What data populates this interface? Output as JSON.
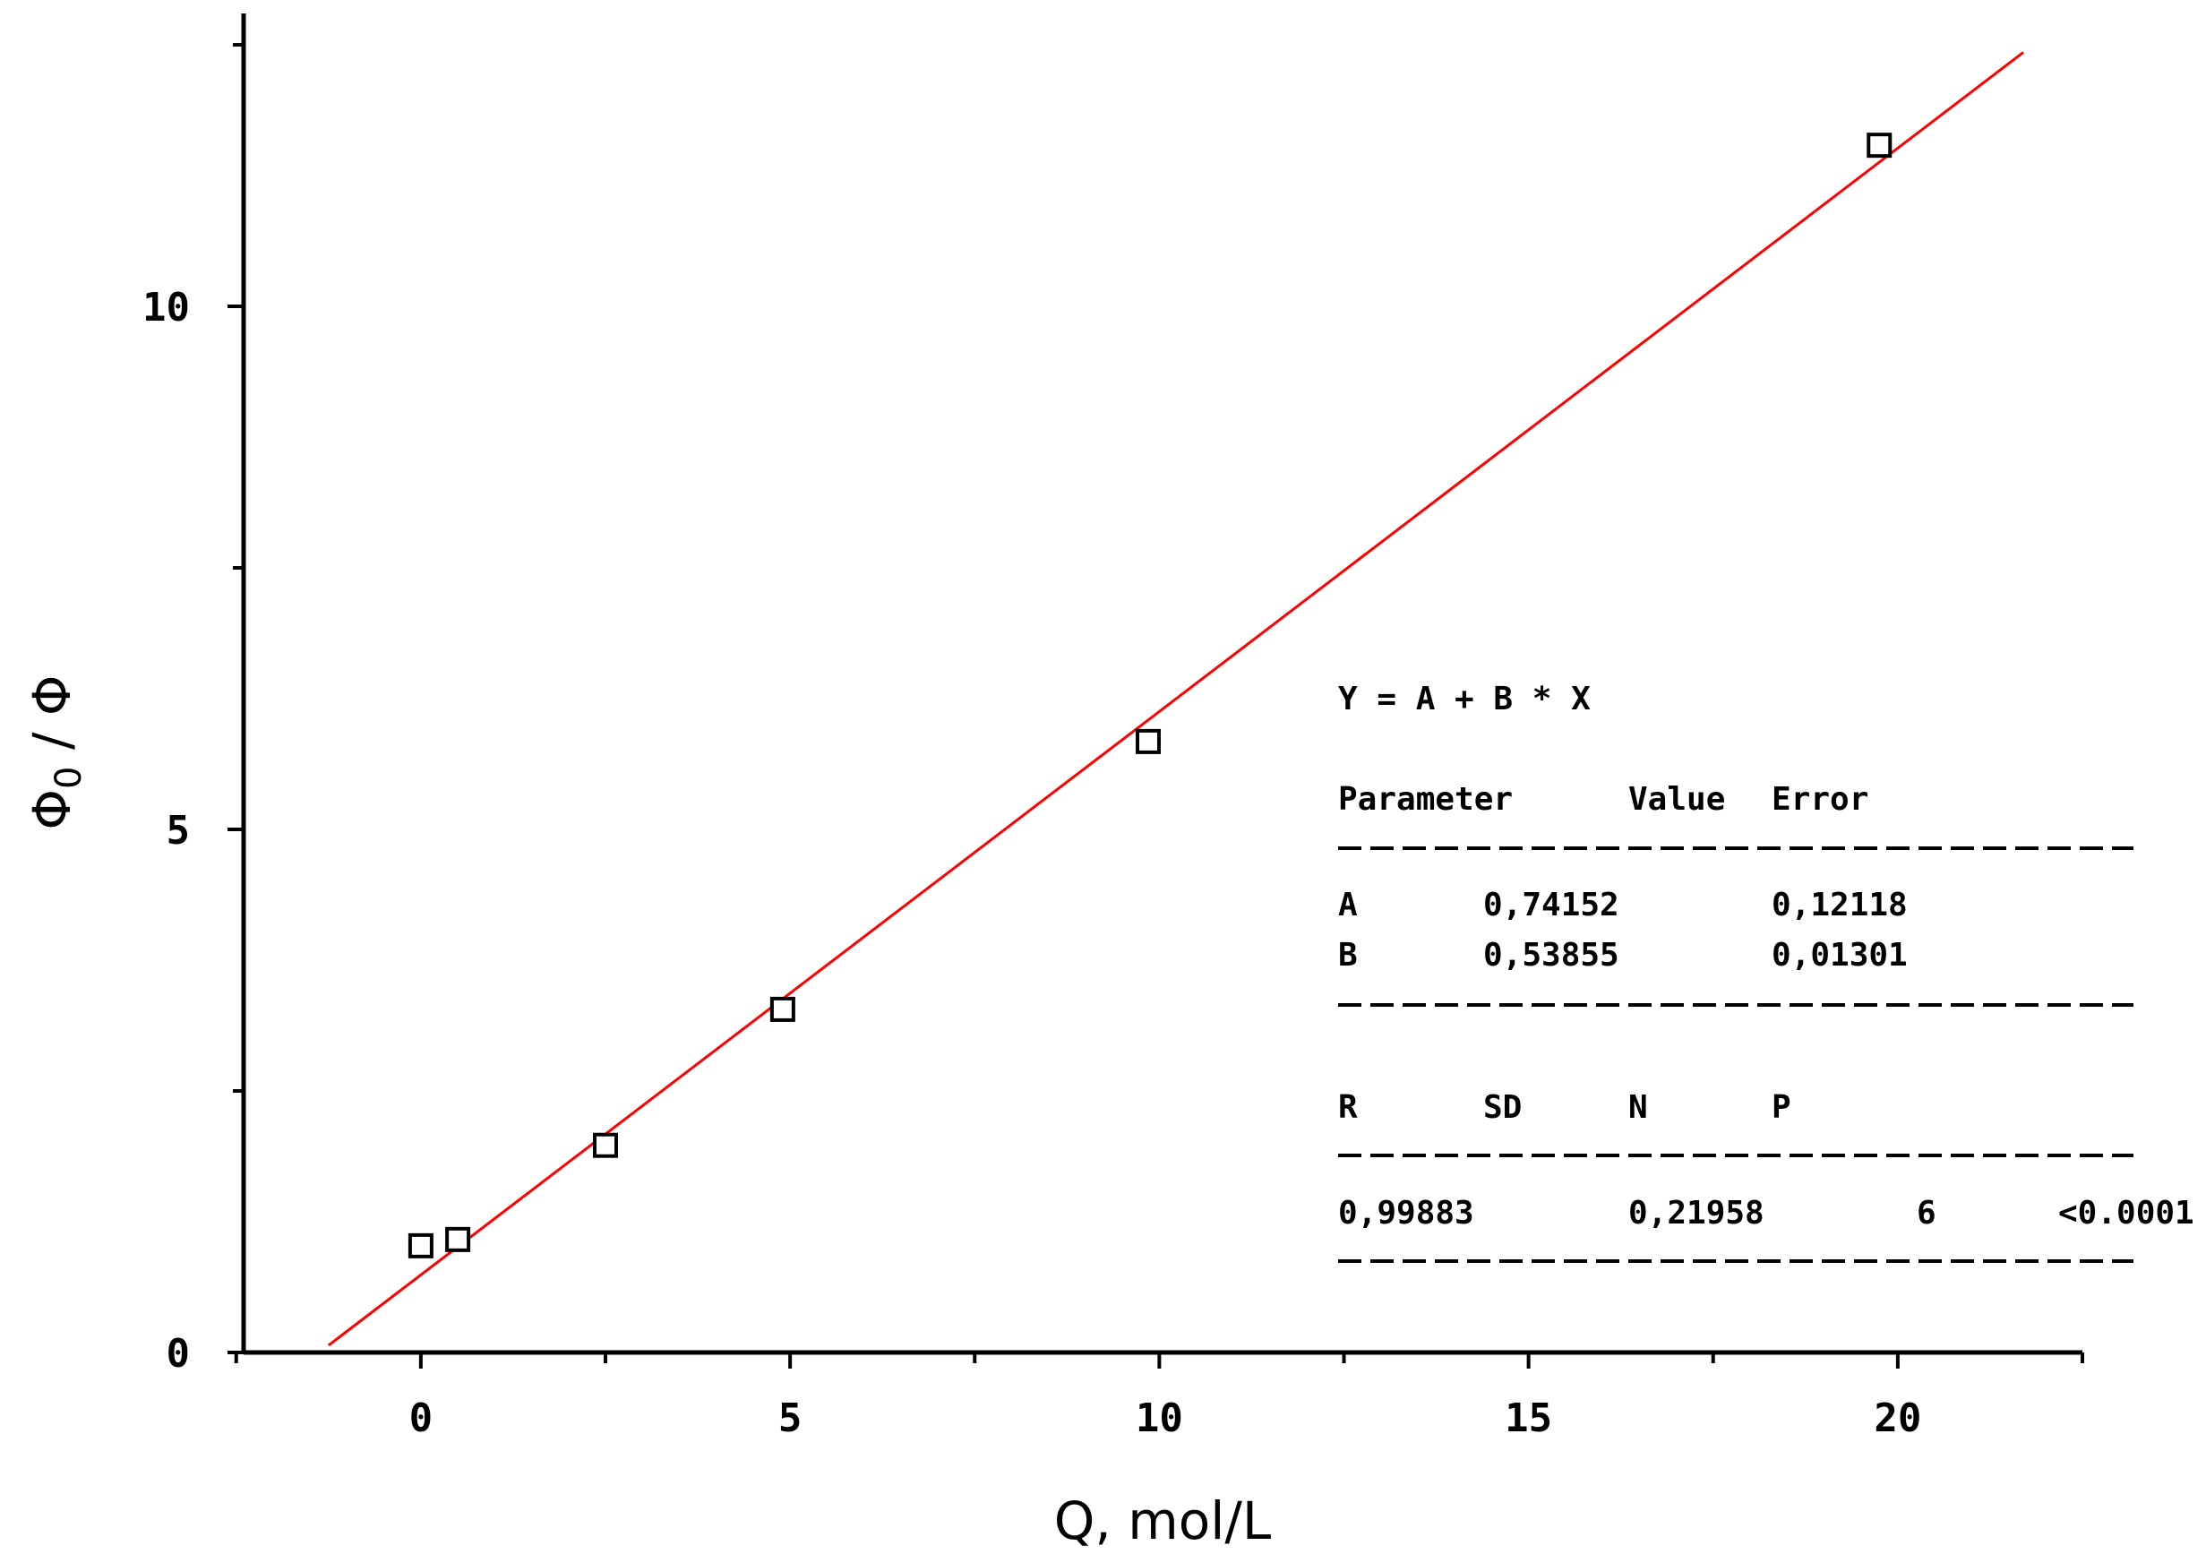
{
  "chart_data": {
    "type": "scatter",
    "xlabel": "Q, mol/L",
    "ylabel_main": "Φ",
    "ylabel_sub": "0",
    "ylabel_rest": " / Φ",
    "xlim": [
      -2.4,
      22.5
    ],
    "ylim": [
      0,
      12.8
    ],
    "x_ticks": [
      0,
      5,
      10,
      15,
      20
    ],
    "x_minor_ticks": [
      -2.5,
      2.5,
      7.5,
      12.5,
      17.5,
      22.5
    ],
    "y_ticks": [
      0,
      5,
      10
    ],
    "y_minor_ticks": [
      2.5,
      7.5,
      12.5
    ],
    "series": [
      {
        "points": [
          {
            "x": 0,
            "y": 1.02
          },
          {
            "x": 0.5,
            "y": 1.08
          },
          {
            "x": 2.5,
            "y": 1.98
          },
          {
            "x": 4.9,
            "y": 3.28
          },
          {
            "x": 9.85,
            "y": 5.84
          },
          {
            "x": 19.75,
            "y": 11.54
          }
        ],
        "marker": "open-square",
        "color": "#000000"
      }
    ],
    "fit_line": {
      "intercept": 0.74152,
      "slope": 0.53855,
      "x_range": [
        -1.25,
        21.7
      ],
      "color": "#ff0000"
    },
    "fit_box": {
      "equation": "Y = A + B * X",
      "header": [
        "Parameter",
        "Value",
        "Error"
      ],
      "rows": [
        [
          "A",
          "0,74152",
          "0,12118"
        ],
        [
          "B",
          "0,53855",
          "0,01301"
        ]
      ],
      "stats_header": [
        "R",
        "SD",
        "N",
        "P"
      ],
      "stats_values": [
        "0,99883",
        "0,21958",
        "6",
        "<0.0001"
      ]
    }
  }
}
